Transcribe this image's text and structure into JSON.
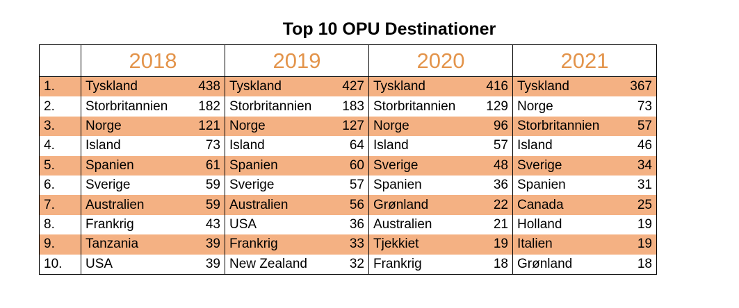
{
  "title": "Top 10 OPU Destinationer",
  "colors": {
    "highlight_row": "#F4B183",
    "year_header": "#E3944B"
  },
  "years": [
    "2018",
    "2019",
    "2020",
    "2021"
  ],
  "ranks": [
    "1.",
    "2.",
    "3.",
    "4.",
    "5.",
    "6.",
    "7.",
    "8.",
    "9.",
    "10."
  ],
  "rows": [
    [
      [
        "Tyskland",
        "438"
      ],
      [
        "Tyskland",
        "427"
      ],
      [
        "Tyskland",
        "416"
      ],
      [
        "Tyskland",
        "367"
      ]
    ],
    [
      [
        "Storbritannien",
        "182"
      ],
      [
        "Storbritannien",
        "183"
      ],
      [
        "Storbritannien",
        "129"
      ],
      [
        "Norge",
        "73"
      ]
    ],
    [
      [
        "Norge",
        "121"
      ],
      [
        "Norge",
        "127"
      ],
      [
        "Norge",
        "96"
      ],
      [
        "Storbritannien",
        "57"
      ]
    ],
    [
      [
        "Island",
        "73"
      ],
      [
        "Island",
        "64"
      ],
      [
        "Island",
        "57"
      ],
      [
        "Island",
        "46"
      ]
    ],
    [
      [
        "Spanien",
        "61"
      ],
      [
        "Spanien",
        "60"
      ],
      [
        "Sverige",
        "48"
      ],
      [
        "Sverige",
        "34"
      ]
    ],
    [
      [
        "Sverige",
        "59"
      ],
      [
        "Sverige",
        "57"
      ],
      [
        "Spanien",
        "36"
      ],
      [
        "Spanien",
        "31"
      ]
    ],
    [
      [
        "Australien",
        "59"
      ],
      [
        "Australien",
        "56"
      ],
      [
        "Grønland",
        "22"
      ],
      [
        "Canada",
        "25"
      ]
    ],
    [
      [
        "Frankrig",
        "43"
      ],
      [
        "USA",
        "36"
      ],
      [
        "Australien",
        "21"
      ],
      [
        "Holland",
        "19"
      ]
    ],
    [
      [
        "Tanzania",
        "39"
      ],
      [
        "Frankrig",
        "33"
      ],
      [
        "Tjekkiet",
        "19"
      ],
      [
        "Italien",
        "19"
      ]
    ],
    [
      [
        "USA",
        "39"
      ],
      [
        "New Zealand",
        "32"
      ],
      [
        "Frankrig",
        "18"
      ],
      [
        "Grønland",
        "18"
      ]
    ]
  ]
}
